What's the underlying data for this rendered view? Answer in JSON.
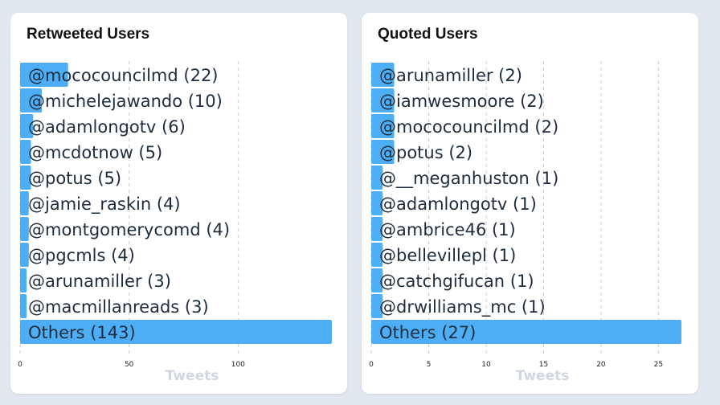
{
  "bar_color": "#4daef5",
  "chart_data": [
    {
      "type": "bar",
      "orientation": "horizontal",
      "title": "Retweeted Users",
      "xlabel": "Tweets",
      "xlim": [
        0,
        143
      ],
      "xticks": [
        0,
        50,
        100
      ],
      "grid": true,
      "categories": [
        "@mococouncilmd",
        "@michelejawando",
        "@adamlongotv",
        "@mcdotnow",
        "@potus",
        "@jamie_raskin",
        "@montgomerycomd",
        "@pgcmls",
        "@arunamiller",
        "@macmillanreads",
        "Others"
      ],
      "values": [
        22,
        10,
        6,
        5,
        5,
        4,
        4,
        4,
        3,
        3,
        143
      ],
      "labels": [
        "@mococouncilmd (22)",
        "@michelejawando (10)",
        "@adamlongotv (6)",
        "@mcdotnow (5)",
        "@potus (5)",
        "@jamie_raskin (4)",
        "@montgomerycomd (4)",
        "@pgcmls (4)",
        "@arunamiller (3)",
        "@macmillanreads (3)",
        "Others (143)"
      ]
    },
    {
      "type": "bar",
      "orientation": "horizontal",
      "title": "Quoted Users",
      "xlabel": "Tweets",
      "xlim": [
        0,
        27
      ],
      "xticks": [
        0,
        5,
        10,
        15,
        20,
        25
      ],
      "grid": true,
      "categories": [
        "@arunamiller",
        "@iamwesmoore",
        "@mococouncilmd",
        "@potus",
        "@__meganhuston",
        "@adamlongotv",
        "@ambrice46",
        "@bellevillepl",
        "@catchgifucan",
        "@drwilliams_mc",
        "Others"
      ],
      "values": [
        2,
        2,
        2,
        2,
        1,
        1,
        1,
        1,
        1,
        1,
        27
      ],
      "labels": [
        "@arunamiller (2)",
        "@iamwesmoore (2)",
        "@mococouncilmd (2)",
        "@potus (2)",
        "@__meganhuston (1)",
        "@adamlongotv (1)",
        "@ambrice46 (1)",
        "@bellevillepl (1)",
        "@catchgifucan (1)",
        "@drwilliams_mc (1)",
        "Others (27)"
      ]
    }
  ]
}
